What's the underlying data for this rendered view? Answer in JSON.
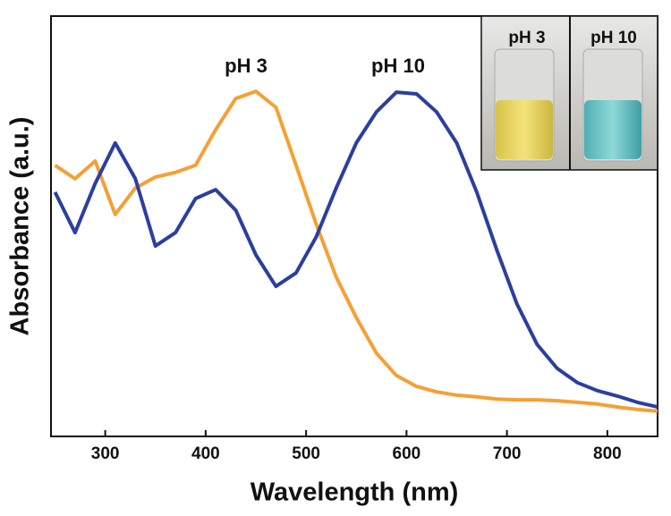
{
  "chart_data": {
    "type": "line",
    "x_label": "Wavelength (nm)",
    "y_label": "Absorbance (a.u.)",
    "annotations": [
      "pH 3",
      "pH 10"
    ],
    "inset_labels": [
      "pH 3",
      "pH 10"
    ],
    "x": [
      250,
      270,
      290,
      310,
      330,
      350,
      370,
      390,
      410,
      430,
      450,
      470,
      490,
      510,
      530,
      550,
      570,
      590,
      610,
      630,
      650,
      670,
      690,
      710,
      730,
      750,
      770,
      790,
      810,
      830,
      850
    ],
    "xlim": [
      246,
      850
    ],
    "xticks": [
      300,
      400,
      500,
      600,
      700,
      800
    ],
    "ylim": [
      0,
      1
    ],
    "series": [
      {
        "name": "pH 3",
        "color": "#f5a034",
        "values": [
          0.645,
          0.613,
          0.655,
          0.528,
          0.591,
          0.617,
          0.628,
          0.645,
          0.73,
          0.804,
          0.821,
          0.783,
          0.645,
          0.506,
          0.379,
          0.283,
          0.198,
          0.145,
          0.119,
          0.106,
          0.098,
          0.094,
          0.089,
          0.087,
          0.087,
          0.085,
          0.081,
          0.077,
          0.07,
          0.064,
          0.06
        ]
      },
      {
        "name": "pH 10",
        "color": "#2b3f9e",
        "values": [
          0.581,
          0.485,
          0.602,
          0.698,
          0.613,
          0.453,
          0.485,
          0.566,
          0.587,
          0.538,
          0.432,
          0.357,
          0.389,
          0.474,
          0.591,
          0.698,
          0.772,
          0.819,
          0.815,
          0.772,
          0.698,
          0.581,
          0.443,
          0.315,
          0.219,
          0.162,
          0.128,
          0.109,
          0.096,
          0.081,
          0.07
        ]
      }
    ]
  }
}
